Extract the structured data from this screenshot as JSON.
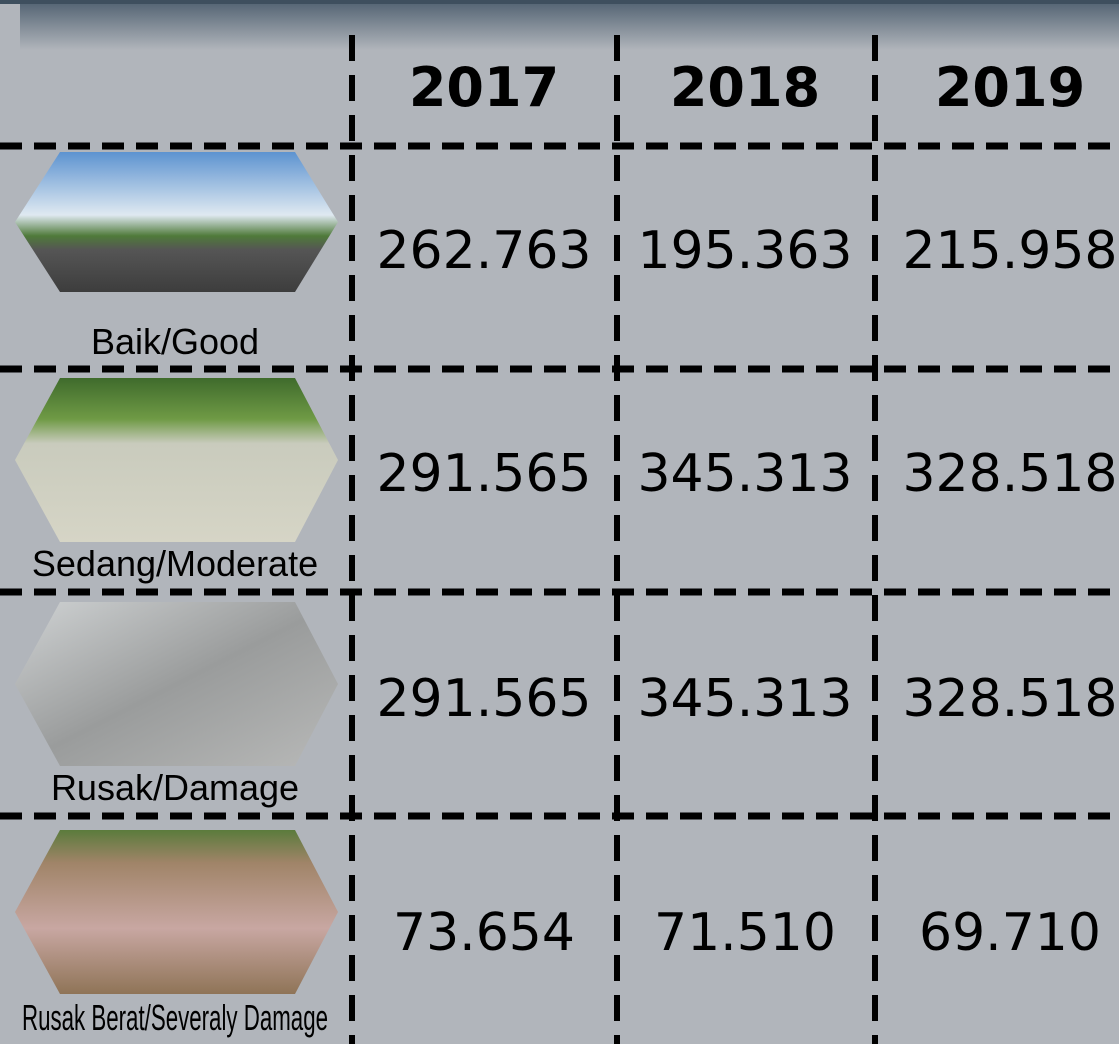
{
  "table": {
    "header": [
      "2017",
      "2018",
      "2019"
    ],
    "rows": [
      {
        "label": "Baik/Good",
        "values": [
          "262.763",
          "195.363",
          "215.958"
        ]
      },
      {
        "label": "Sedang/Moderate",
        "values": [
          "291.565",
          "345.313",
          "328.518"
        ]
      },
      {
        "label": "Rusak/Damage",
        "values": [
          "291.565",
          "345.313",
          "328.518"
        ]
      },
      {
        "label": "Rusak Berat/Severaly Damage",
        "values": [
          "73.654",
          "71.510",
          "69.710"
        ]
      }
    ]
  }
}
